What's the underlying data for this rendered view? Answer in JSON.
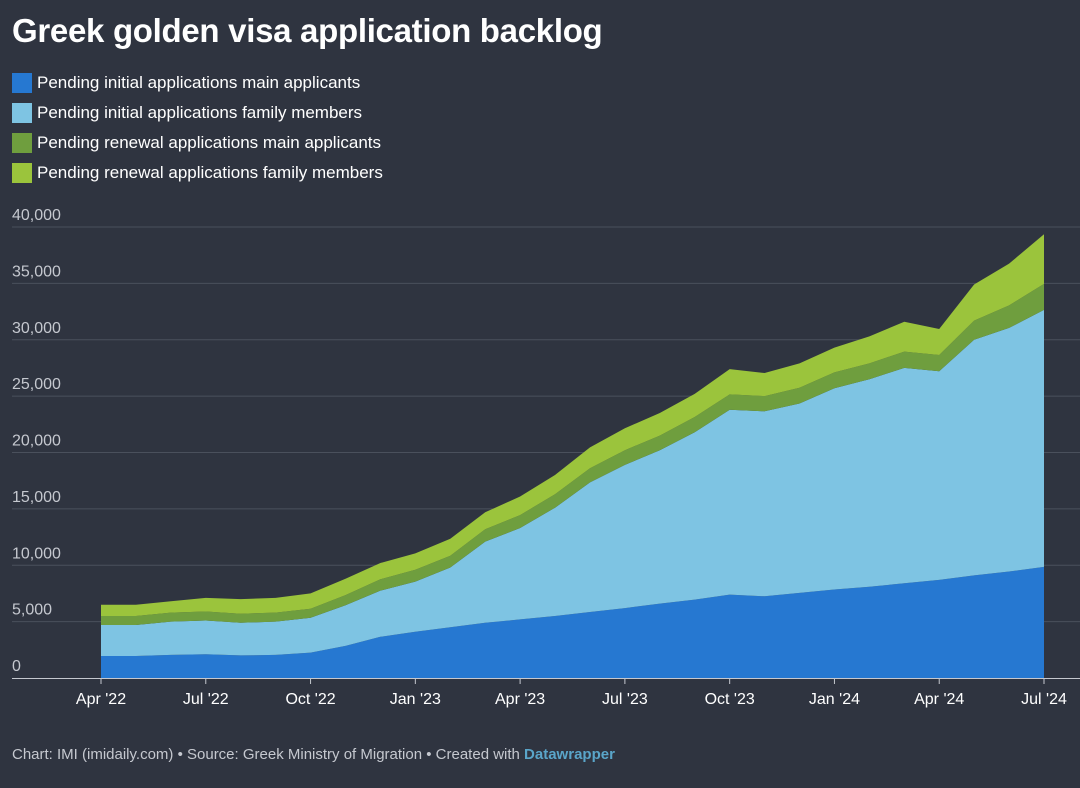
{
  "header": {
    "title": "Greek golden visa application backlog"
  },
  "footer": {
    "chart_credit": "Chart: IMI (imidaily.com)",
    "separator_1": " • ",
    "source": "Source: Greek Ministry of Migration",
    "separator_2": " • ",
    "created_with": "Created with ",
    "tool": "Datawrapper"
  },
  "chart_data": {
    "type": "area",
    "stacked": true,
    "title": "Greek golden visa application backlog",
    "xlabel": "",
    "ylabel": "",
    "ylim": [
      0,
      40000
    ],
    "y_ticks": [
      0,
      5000,
      10000,
      15000,
      20000,
      25000,
      30000,
      35000,
      40000
    ],
    "y_tick_labels": [
      "0",
      "5,000",
      "10,000",
      "15,000",
      "20,000",
      "25,000",
      "30,000",
      "35,000",
      "40,000"
    ],
    "x_tick_labels": [
      "Apr '22",
      "Jul '22",
      "Oct '22",
      "Jan '23",
      "Apr '23",
      "Jul '23",
      "Oct '23",
      "Jan '24",
      "Apr '24",
      "Jul '24"
    ],
    "x_tick_index": [
      0,
      3,
      6,
      9,
      12,
      15,
      18,
      21,
      24,
      27
    ],
    "x": [
      "2022-04",
      "2022-05",
      "2022-06",
      "2022-07",
      "2022-08",
      "2022-09",
      "2022-10",
      "2022-11",
      "2022-12",
      "2023-01",
      "2023-02",
      "2023-03",
      "2023-04",
      "2023-05",
      "2023-06",
      "2023-07",
      "2023-08",
      "2023-09",
      "2023-10",
      "2023-11",
      "2023-12",
      "2024-01",
      "2024-02",
      "2024-03",
      "2024-04",
      "2024-05",
      "2024-06",
      "2024-07"
    ],
    "grid": true,
    "legend": "top-left",
    "series": [
      {
        "name": "Pending initial applications main applicants",
        "color": "#2678d1",
        "values": [
          1950,
          1950,
          2050,
          2100,
          2000,
          2050,
          2250,
          2850,
          3650,
          4100,
          4500,
          4900,
          5200,
          5500,
          5850,
          6200,
          6600,
          6950,
          7400,
          7250,
          7550,
          7850,
          8100,
          8400,
          8700,
          9100,
          9450,
          9850
        ]
      },
      {
        "name": "Pending initial applications family members",
        "color": "#7ec4e3",
        "values": [
          2750,
          2750,
          2950,
          3000,
          2900,
          2950,
          3100,
          3600,
          4100,
          4450,
          5300,
          7200,
          8100,
          9600,
          11500,
          12700,
          13600,
          14850,
          16400,
          16400,
          16800,
          17850,
          18400,
          19100,
          18500,
          20900,
          21600,
          22800
        ]
      },
      {
        "name": "Pending renewal applications main applicants",
        "color": "#6f9e3e",
        "values": [
          800,
          800,
          800,
          800,
          800,
          800,
          800,
          900,
          1000,
          1050,
          1050,
          1100,
          1150,
          1200,
          1250,
          1300,
          1300,
          1350,
          1350,
          1350,
          1400,
          1400,
          1400,
          1450,
          1450,
          1700,
          2000,
          2300
        ]
      },
      {
        "name": "Pending renewal applications family members",
        "color": "#9bc43c",
        "values": [
          1000,
          1000,
          1000,
          1200,
          1300,
          1300,
          1350,
          1450,
          1450,
          1450,
          1500,
          1500,
          1650,
          1700,
          1850,
          1950,
          2000,
          2050,
          2250,
          2050,
          2150,
          2200,
          2400,
          2650,
          2300,
          3200,
          3700,
          4400
        ]
      }
    ]
  }
}
